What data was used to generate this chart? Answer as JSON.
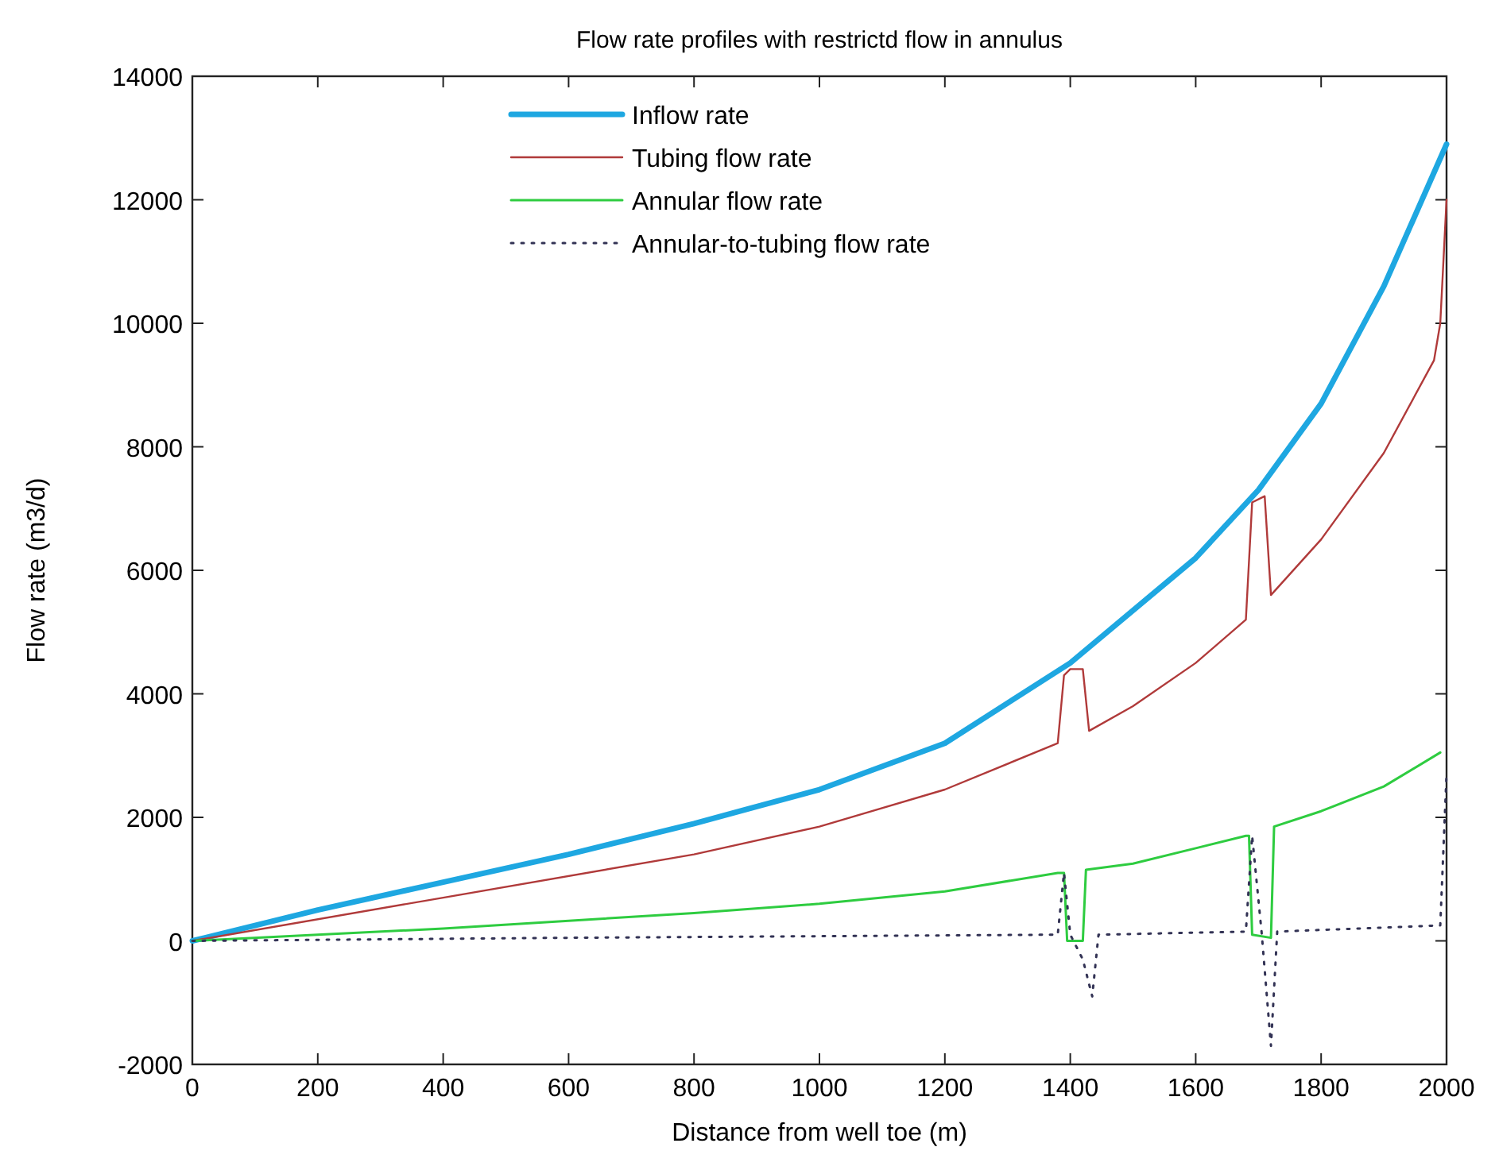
{
  "chart_data": {
    "type": "line",
    "title": "Flow rate profiles with restrictd flow in annulus",
    "xlabel": "Distance from well toe (m)",
    "ylabel": "Flow rate (m3/d)",
    "xlim": [
      0,
      2000
    ],
    "xticks": [
      0,
      200,
      400,
      600,
      800,
      1000,
      1200,
      1400,
      1600,
      1800,
      2000
    ],
    "ylim": [
      -2000,
      14000
    ],
    "yticks": [
      -2000,
      0,
      2000,
      4000,
      6000,
      8000,
      10000,
      12000,
      14000
    ],
    "grid": false,
    "legend": "top",
    "series": [
      {
        "name": "Inflow rate",
        "color": "#1ea7e1",
        "line_style": "solid",
        "x": [
          0,
          200,
          400,
          600,
          800,
          1000,
          1200,
          1400,
          1600,
          1700,
          1800,
          1900,
          2000
        ],
        "values": [
          0,
          500,
          950,
          1400,
          1900,
          2450,
          3200,
          4500,
          6200,
          7300,
          8700,
          10600,
          12900
        ]
      },
      {
        "name": "Tubing flow rate",
        "color": "#b03a3a",
        "line_style": "solid",
        "x": [
          0,
          400,
          800,
          1000,
          1200,
          1380,
          1390,
          1400,
          1420,
          1430,
          1500,
          1600,
          1680,
          1690,
          1710,
          1720,
          1800,
          1900,
          1980,
          1990,
          2000
        ],
        "values": [
          0,
          700,
          1400,
          1850,
          2450,
          3200,
          4300,
          4400,
          4400,
          3400,
          3800,
          4500,
          5200,
          7100,
          7200,
          5600,
          6500,
          7900,
          9400,
          10000,
          12000
        ]
      },
      {
        "name": "Annular flow rate",
        "color": "#2ecc40",
        "line_style": "solid",
        "x": [
          0,
          400,
          800,
          1000,
          1200,
          1380,
          1390,
          1395,
          1420,
          1425,
          1500,
          1600,
          1680,
          1685,
          1690,
          1720,
          1725,
          1800,
          1900,
          1990
        ],
        "values": [
          0,
          200,
          450,
          600,
          800,
          1100,
          1100,
          0,
          0,
          1150,
          1250,
          1500,
          1700,
          1700,
          100,
          50,
          1850,
          2100,
          2500,
          3050
        ]
      },
      {
        "name": "Annular-to-tubing flow rate",
        "color": "#333355",
        "line_style": "dotted",
        "x": [
          0,
          600,
          1380,
          1390,
          1400,
          1420,
          1435,
          1445,
          1680,
          1690,
          1705,
          1720,
          1730,
          1990,
          2000
        ],
        "values": [
          0,
          50,
          100,
          1100,
          100,
          -300,
          -900,
          100,
          150,
          1700,
          150,
          -1700,
          150,
          250,
          2700
        ]
      }
    ]
  }
}
